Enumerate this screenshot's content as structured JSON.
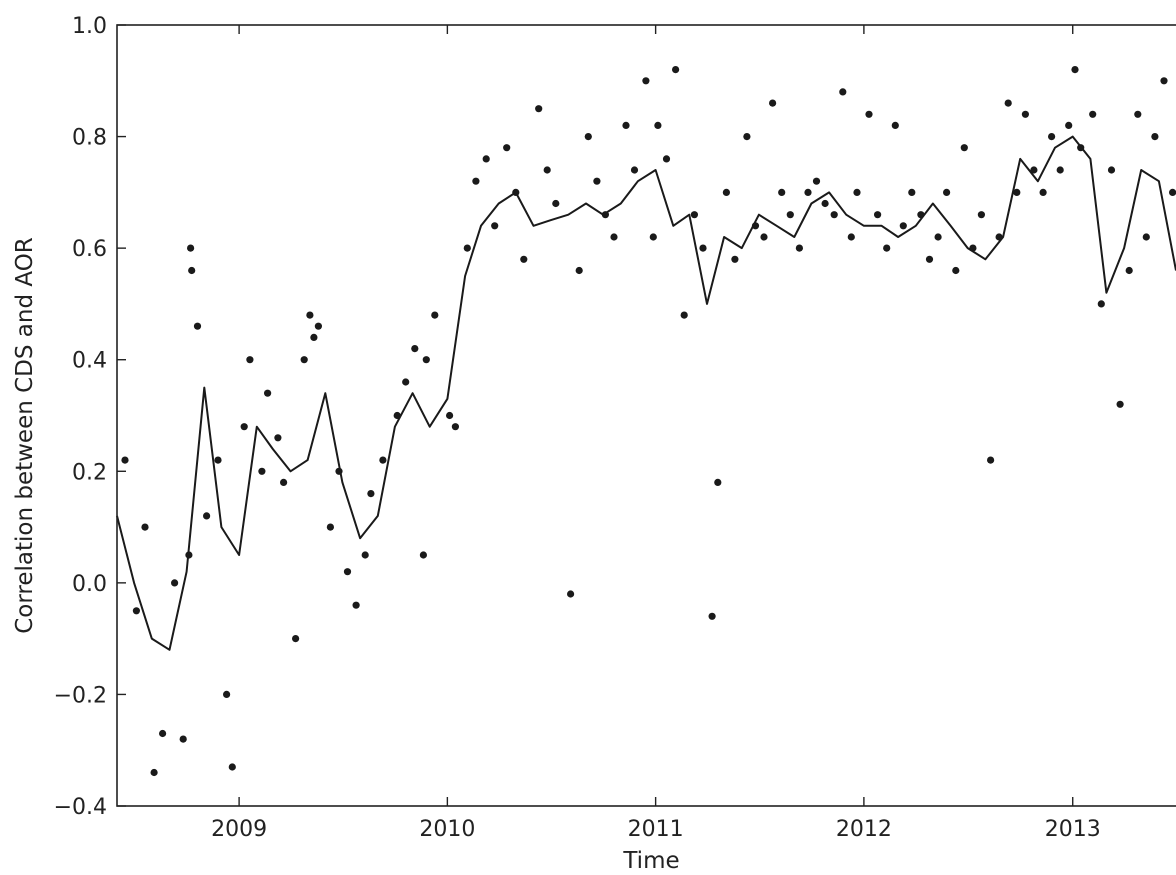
{
  "chart_data": {
    "type": "scatter",
    "title": "",
    "xlabel": "Time",
    "ylabel": "Correlation between CDS and AOR",
    "xlim": [
      "2008-06-01",
      "2013-07-01"
    ],
    "ylim": [
      -0.4,
      1.0
    ],
    "y_ticks": [
      -0.4,
      -0.2,
      0.0,
      0.2,
      0.4,
      0.6,
      0.8,
      1.0
    ],
    "y_tick_labels": [
      "−0.4",
      "−0.2",
      "0.0",
      "0.2",
      "0.4",
      "0.6",
      "0.8",
      "1.0"
    ],
    "x_ticks": [
      "2009-01-01",
      "2010-01-01",
      "2011-01-01",
      "2012-01-01",
      "2013-01-01"
    ],
    "x_tick_labels": [
      "2009",
      "2010",
      "2011",
      "2012",
      "2013"
    ],
    "grid": false,
    "legend": "none",
    "colors": {
      "points": "#1a1a1a",
      "line": "#1a1a1a",
      "axes": "#222222"
    },
    "series": [
      {
        "style": "line",
        "x": [
          "2008-06-01",
          "2008-07-01",
          "2008-08-01",
          "2008-09-01",
          "2008-10-01",
          "2008-11-01",
          "2008-12-01",
          "2009-01-01",
          "2009-02-01",
          "2009-03-01",
          "2009-04-01",
          "2009-05-01",
          "2009-06-01",
          "2009-07-01",
          "2009-08-01",
          "2009-09-01",
          "2009-10-01",
          "2009-11-01",
          "2009-12-01",
          "2010-01-01",
          "2010-02-01",
          "2010-03-01",
          "2010-04-01",
          "2010-05-01",
          "2010-06-01",
          "2010-07-01",
          "2010-08-01",
          "2010-09-01",
          "2010-10-01",
          "2010-11-01",
          "2010-12-01",
          "2011-01-01",
          "2011-02-01",
          "2011-03-01",
          "2011-04-01",
          "2011-05-01",
          "2011-06-01",
          "2011-07-01",
          "2011-08-01",
          "2011-09-01",
          "2011-10-01",
          "2011-11-01",
          "2011-12-01",
          "2012-01-01",
          "2012-02-01",
          "2012-03-01",
          "2012-04-01",
          "2012-05-01",
          "2012-06-01",
          "2012-07-01",
          "2012-08-01",
          "2012-09-01",
          "2012-10-01",
          "2012-11-01",
          "2012-12-01",
          "2013-01-01",
          "2013-02-01",
          "2013-03-01",
          "2013-04-01",
          "2013-05-01",
          "2013-06-01",
          "2013-07-01"
        ],
        "y": [
          0.12,
          0.0,
          -0.1,
          -0.12,
          0.02,
          0.35,
          0.1,
          0.05,
          0.28,
          0.24,
          0.2,
          0.22,
          0.34,
          0.18,
          0.08,
          0.12,
          0.28,
          0.34,
          0.28,
          0.33,
          0.55,
          0.64,
          0.68,
          0.7,
          0.64,
          0.65,
          0.66,
          0.68,
          0.66,
          0.68,
          0.72,
          0.74,
          0.64,
          0.66,
          0.5,
          0.62,
          0.6,
          0.66,
          0.64,
          0.62,
          0.68,
          0.7,
          0.66,
          0.64,
          0.64,
          0.62,
          0.64,
          0.68,
          0.64,
          0.6,
          0.58,
          0.62,
          0.76,
          0.72,
          0.78,
          0.8,
          0.76,
          0.52,
          0.6,
          0.74,
          0.72,
          0.56
        ]
      },
      {
        "style": "scatter",
        "x": [
          "2008-06-15",
          "2008-07-05",
          "2008-07-20",
          "2008-08-05",
          "2008-08-20",
          "2008-09-10",
          "2008-09-25",
          "2008-10-05",
          "2008-10-08",
          "2008-10-10",
          "2008-10-20",
          "2008-11-05",
          "2008-11-25",
          "2008-12-10",
          "2008-12-20",
          "2009-01-10",
          "2009-01-20",
          "2009-02-10",
          "2009-02-20",
          "2009-03-10",
          "2009-03-20",
          "2009-04-10",
          "2009-04-25",
          "2009-05-05",
          "2009-05-12",
          "2009-05-20",
          "2009-06-10",
          "2009-06-25",
          "2009-07-10",
          "2009-07-25",
          "2009-08-10",
          "2009-08-20",
          "2009-09-10",
          "2009-10-05",
          "2009-10-20",
          "2009-11-05",
          "2009-11-20",
          "2009-11-25",
          "2009-12-10",
          "2010-01-05",
          "2010-01-15",
          "2010-02-05",
          "2010-02-20",
          "2010-03-10",
          "2010-03-25",
          "2010-04-15",
          "2010-05-01",
          "2010-05-15",
          "2010-06-10",
          "2010-06-25",
          "2010-07-10",
          "2010-08-05",
          "2010-08-20",
          "2010-09-05",
          "2010-09-20",
          "2010-10-05",
          "2010-10-20",
          "2010-11-10",
          "2010-11-25",
          "2010-12-15",
          "2010-12-28",
          "2011-01-05",
          "2011-01-20",
          "2011-02-05",
          "2011-02-20",
          "2011-03-10",
          "2011-03-25",
          "2011-04-10",
          "2011-04-20",
          "2011-05-05",
          "2011-05-20",
          "2011-06-10",
          "2011-06-25",
          "2011-07-10",
          "2011-07-25",
          "2011-08-10",
          "2011-08-25",
          "2011-09-10",
          "2011-09-25",
          "2011-10-10",
          "2011-10-25",
          "2011-11-10",
          "2011-11-25",
          "2011-12-10",
          "2011-12-20",
          "2012-01-10",
          "2012-01-25",
          "2012-02-10",
          "2012-02-25",
          "2012-03-10",
          "2012-03-25",
          "2012-04-10",
          "2012-04-25",
          "2012-05-10",
          "2012-05-25",
          "2012-06-10",
          "2012-06-25",
          "2012-07-10",
          "2012-07-25",
          "2012-08-10",
          "2012-08-25",
          "2012-09-10",
          "2012-09-25",
          "2012-10-10",
          "2012-10-25",
          "2012-11-10",
          "2012-11-25",
          "2012-12-10",
          "2012-12-25",
          "2013-01-05",
          "2013-01-15",
          "2013-02-05",
          "2013-02-20",
          "2013-03-10",
          "2013-03-25",
          "2013-04-10",
          "2013-04-25",
          "2013-05-10",
          "2013-05-25",
          "2013-06-10",
          "2013-06-25"
        ],
        "y": [
          0.22,
          -0.05,
          0.1,
          -0.34,
          -0.27,
          0.0,
          -0.28,
          0.05,
          0.6,
          0.56,
          0.46,
          0.12,
          0.22,
          -0.2,
          -0.33,
          0.28,
          0.4,
          0.2,
          0.34,
          0.26,
          0.18,
          -0.1,
          0.4,
          0.48,
          0.44,
          0.46,
          0.1,
          0.2,
          0.02,
          -0.04,
          0.05,
          0.16,
          0.22,
          0.3,
          0.36,
          0.42,
          0.05,
          0.4,
          0.48,
          0.3,
          0.28,
          0.6,
          0.72,
          0.76,
          0.64,
          0.78,
          0.7,
          0.58,
          0.85,
          0.74,
          0.68,
          -0.02,
          0.56,
          0.8,
          0.72,
          0.66,
          0.62,
          0.82,
          0.74,
          0.9,
          0.62,
          0.82,
          0.76,
          0.92,
          0.48,
          0.66,
          0.6,
          -0.06,
          0.18,
          0.7,
          0.58,
          0.8,
          0.64,
          0.62,
          0.86,
          0.7,
          0.66,
          0.6,
          0.7,
          0.72,
          0.68,
          0.66,
          0.88,
          0.62,
          0.7,
          0.84,
          0.66,
          0.6,
          0.82,
          0.64,
          0.7,
          0.66,
          0.58,
          0.62,
          0.7,
          0.56,
          0.78,
          0.6,
          0.66,
          0.22,
          0.62,
          0.86,
          0.7,
          0.84,
          0.74,
          0.7,
          0.8,
          0.74,
          0.82,
          0.92,
          0.78,
          0.84,
          0.5,
          0.74,
          0.32,
          0.56,
          0.84,
          0.62,
          0.8,
          0.9,
          0.7
        ]
      }
    ]
  }
}
